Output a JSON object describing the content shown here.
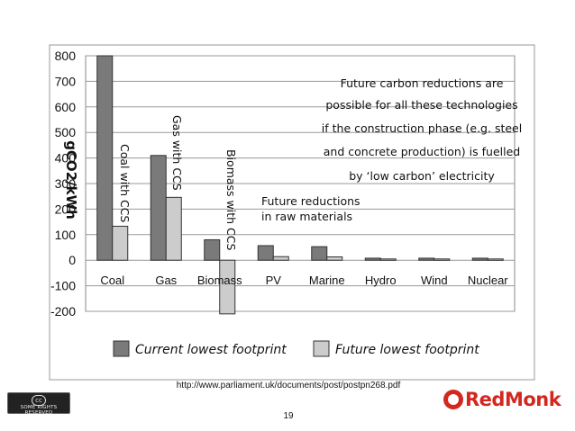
{
  "chart_data": {
    "type": "bar",
    "ylabel": "gCO2/kWh",
    "ylim": [
      -200,
      800
    ],
    "yticks": [
      800,
      700,
      600,
      500,
      400,
      300,
      200,
      100,
      0,
      -100,
      -200
    ],
    "categories": [
      "Coal",
      "Gas",
      "Biomass",
      "PV",
      "Marine",
      "Hydro",
      "Wind",
      "Nuclear"
    ],
    "series": [
      {
        "name": "Current lowest footprint",
        "color": "#7a7a7a",
        "values": [
          800,
          410,
          80,
          57,
          53,
          8,
          8,
          8
        ]
      },
      {
        "name": "Future lowest footprint",
        "color": "#cccccc",
        "values": [
          133,
          246,
          -210,
          14,
          13,
          5,
          5,
          5
        ]
      }
    ],
    "annotations": {
      "coal_ccs": "Coal with CCS",
      "gas_ccs": "Gas with CCS",
      "biomass_ccs": "Biomass with CCS",
      "raw_materials": [
        "Future reductions",
        "in raw materials"
      ],
      "future_carbon": [
        "Future carbon reductions are",
        "possible for all these technologies",
        "if the construction phase (e.g. steel",
        "and concrete production) is fuelled",
        "by ‘low carbon’ electricity"
      ]
    },
    "grid": true,
    "legend_position": "bottom"
  },
  "footer": {
    "source": "http://www.parliament.uk/documents/post/postpn268.pdf",
    "page": "19",
    "license_badge": "SOME RIGHTS RESERVED",
    "license_symbol": "cc",
    "brand": "RedMonk",
    "brand_color": "#d3281f"
  }
}
